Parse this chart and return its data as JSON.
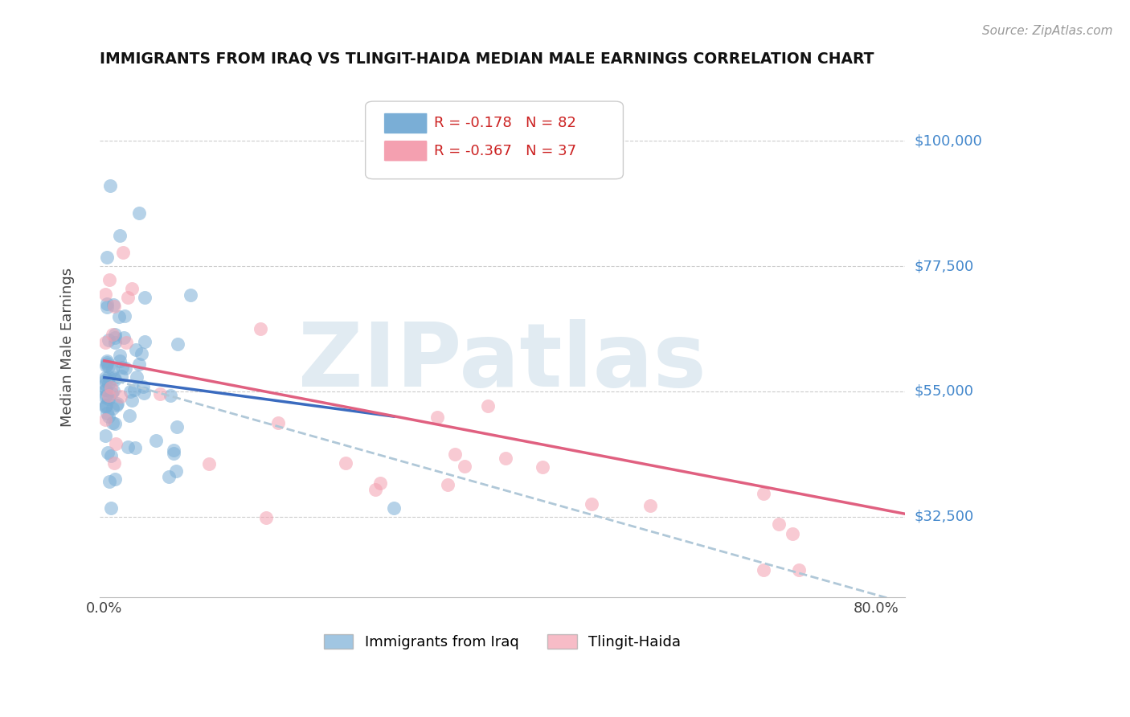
{
  "title": "IMMIGRANTS FROM IRAQ VS TLINGIT-HAIDA MEDIAN MALE EARNINGS CORRELATION CHART",
  "source": "Source: ZipAtlas.com",
  "ylabel": "Median Male Earnings",
  "yticks": [
    32500,
    55000,
    77500,
    100000
  ],
  "ytick_labels": [
    "$32,500",
    "$55,000",
    "$77,500",
    "$100,000"
  ],
  "xlim": [
    -0.005,
    0.83
  ],
  "ylim": [
    18000,
    108000
  ],
  "watermark": "ZIPatlas",
  "legend1_r": "R = ",
  "legend1_rv": "-0.178",
  "legend1_n": "N = ",
  "legend1_nv": "82",
  "legend2_r": "R = ",
  "legend2_rv": "-0.367",
  "legend2_n": "N = ",
  "legend2_nv": "37",
  "legend_bottom_label1": "Immigrants from Iraq",
  "legend_bottom_label2": "Tlingit-Haida",
  "blue_color": "#7aaed6",
  "pink_color": "#f4a0b0",
  "blue_trend_color": "#3a6bbf",
  "pink_trend_color": "#e06080",
  "dash_trend_color": "#b0c8d8",
  "blue_trend_x": [
    0.0,
    0.3
  ],
  "blue_trend_y": [
    57500,
    50500
  ],
  "pink_trend_x": [
    0.0,
    0.83
  ],
  "pink_trend_y": [
    60500,
    33000
  ],
  "dash_trend_x": [
    0.0,
    0.83
  ],
  "dash_trend_y": [
    57500,
    17000
  ],
  "blue_seed": 42,
  "pink_seed": 7
}
